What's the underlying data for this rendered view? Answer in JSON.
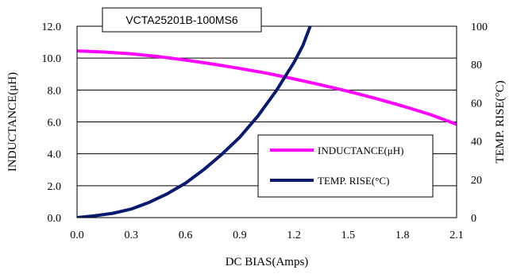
{
  "chart_data": {
    "type": "line",
    "title": "VCTA25201B-100MS6",
    "xlabel": "DC BIAS(Amps)",
    "ylabel_left": "INDUCTANCE(μH)",
    "ylabel_right": "TEMP. RISE(°C)",
    "xlim": [
      0.0,
      2.1
    ],
    "ylim_left": [
      0.0,
      12.0
    ],
    "ylim_right": [
      0,
      100
    ],
    "x_ticks": [
      "0.0",
      "0.3",
      "0.6",
      "0.9",
      "1.2",
      "1.5",
      "1.8",
      "2.1"
    ],
    "y_left_ticks": [
      "0.0",
      "2.0",
      "4.0",
      "6.0",
      "8.0",
      "10.0",
      "12.0"
    ],
    "y_right_ticks": [
      "0",
      "20",
      "40",
      "60",
      "80",
      "100"
    ],
    "grid": "horizontal",
    "legend_position": "lower-right",
    "series": [
      {
        "name": "INDUCTANCE(μH)",
        "axis": "left",
        "color": "#ff00ff",
        "x": [
          0.0,
          0.15,
          0.3,
          0.45,
          0.6,
          0.75,
          0.9,
          1.05,
          1.2,
          1.35,
          1.5,
          1.65,
          1.8,
          1.95,
          2.1
        ],
        "y": [
          10.45,
          10.38,
          10.27,
          10.1,
          9.88,
          9.63,
          9.35,
          9.05,
          8.7,
          8.32,
          7.92,
          7.48,
          7.0,
          6.48,
          5.85
        ]
      },
      {
        "name": "TEMP. RISE(°C)",
        "axis": "right",
        "color": "#0a1a6e",
        "x": [
          0.0,
          0.1,
          0.2,
          0.3,
          0.4,
          0.5,
          0.6,
          0.7,
          0.8,
          0.9,
          1.0,
          1.1,
          1.2,
          1.25,
          1.29
        ],
        "y": [
          0.0,
          1.0,
          2.3,
          4.5,
          8.0,
          12.5,
          18.0,
          25.0,
          33.0,
          42.0,
          53.0,
          66.0,
          81.0,
          90.0,
          100.0
        ]
      }
    ]
  }
}
